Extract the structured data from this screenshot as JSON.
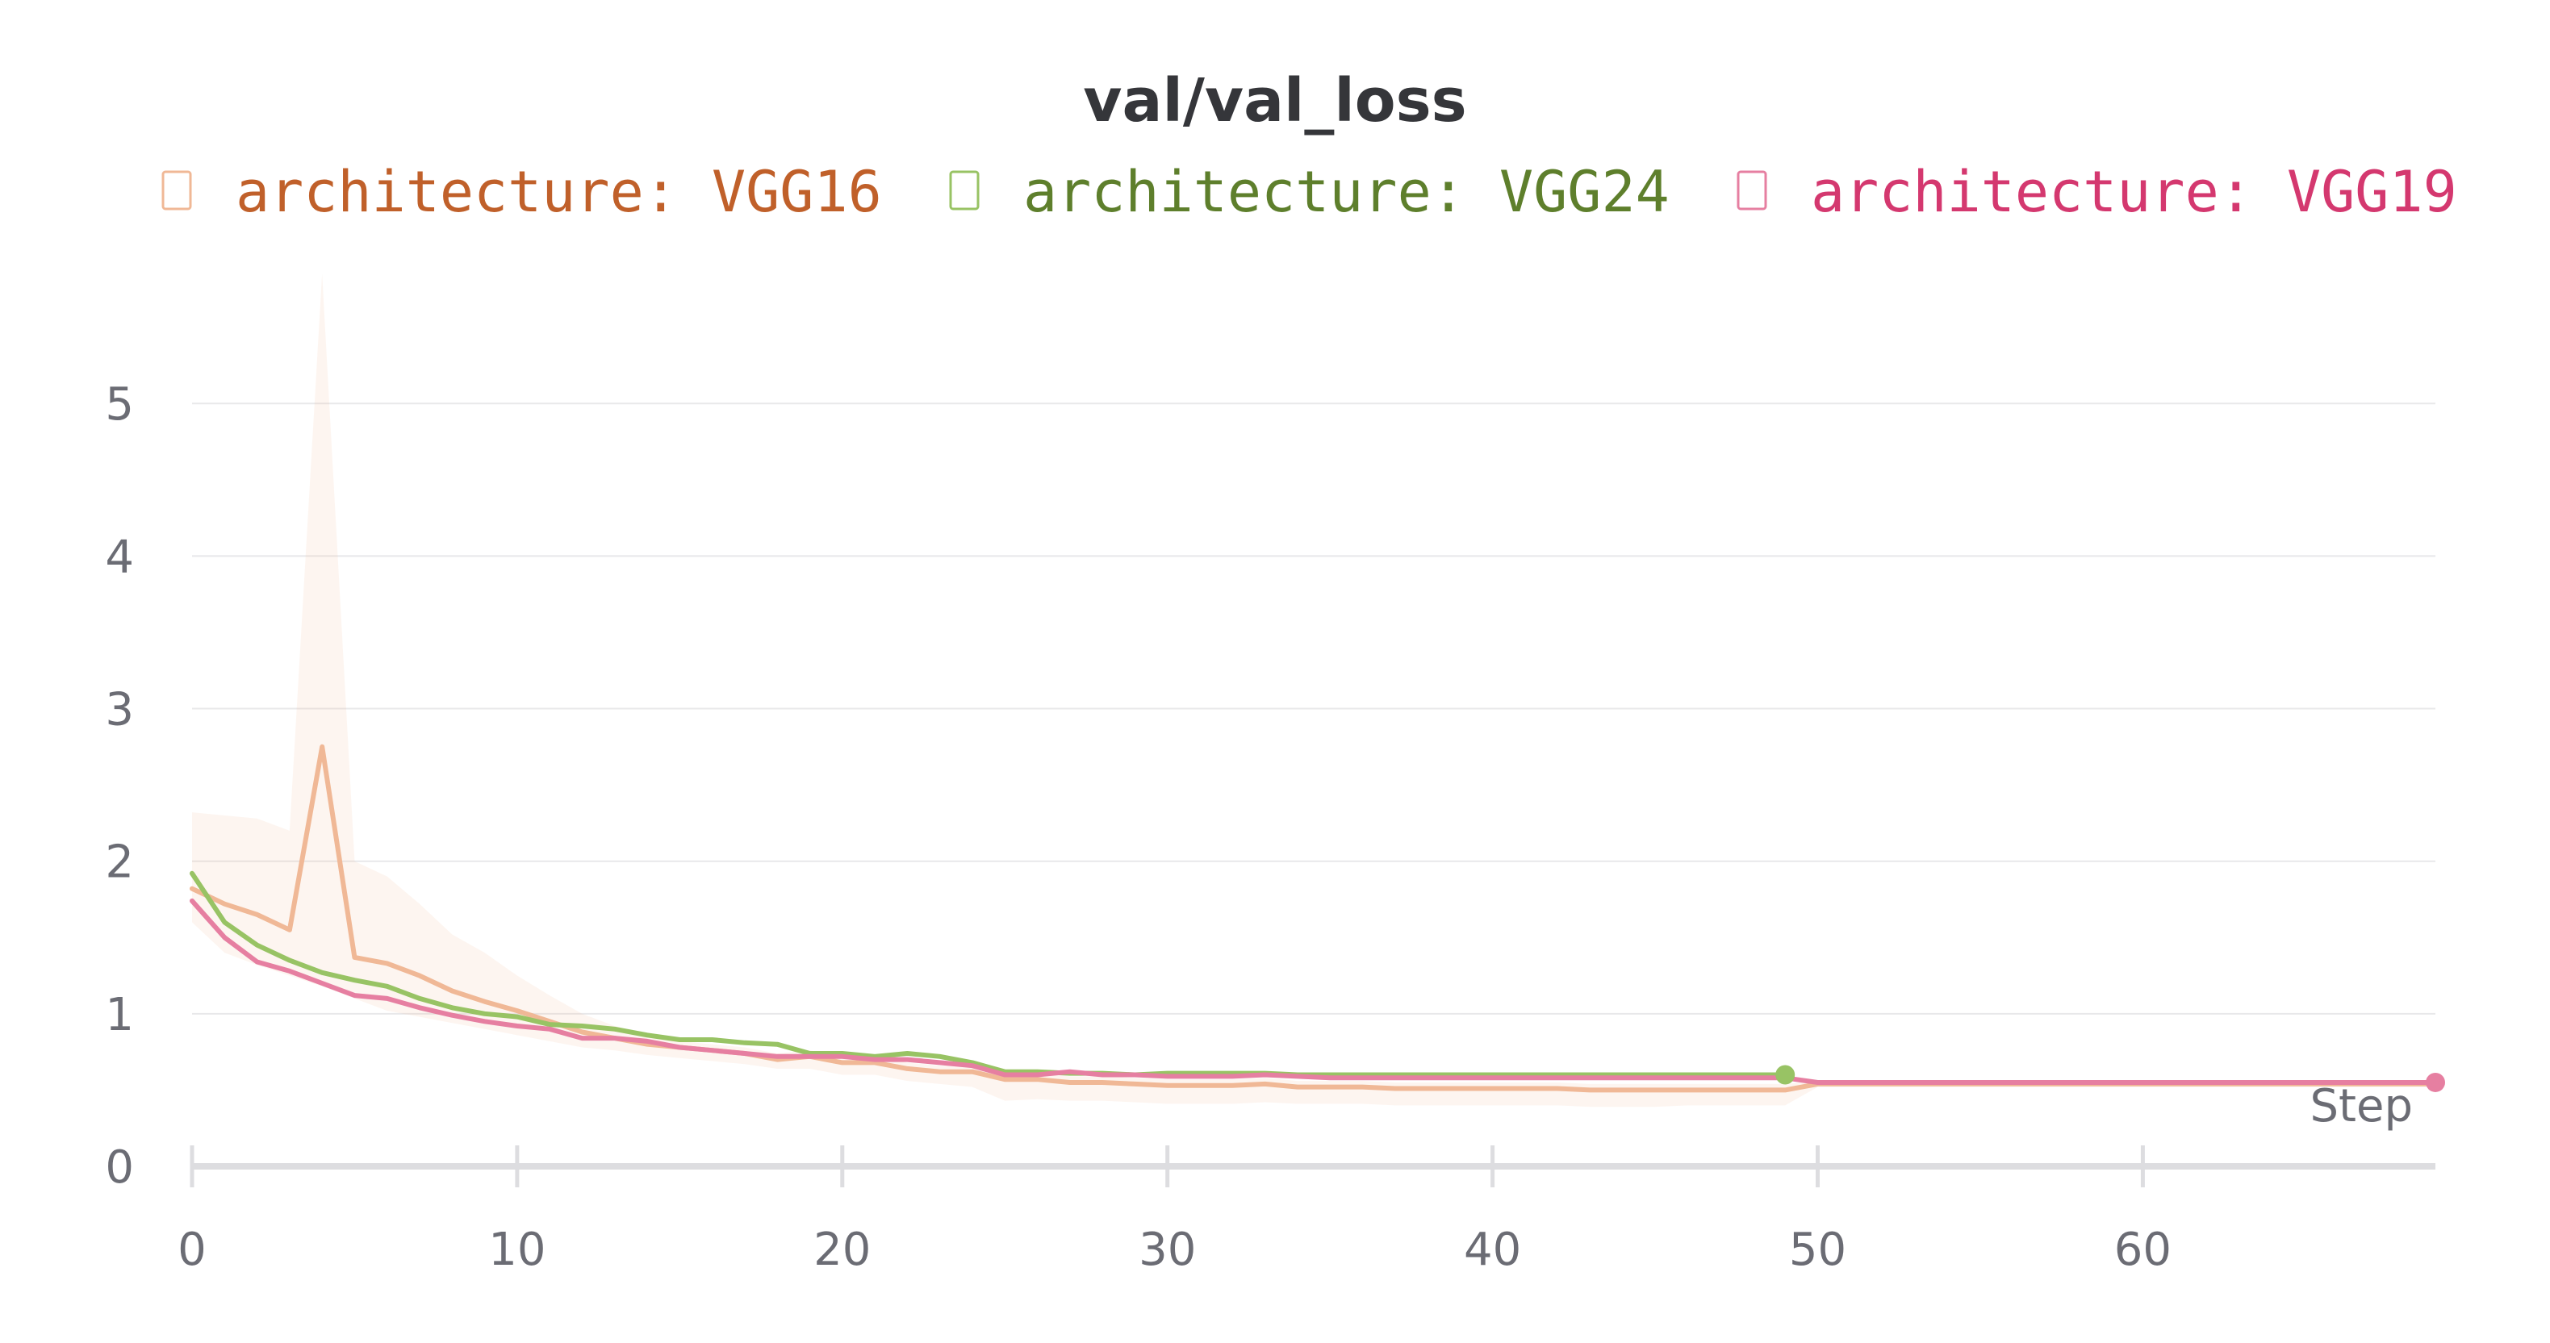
{
  "chart_data": {
    "type": "line",
    "title": "val/val_loss",
    "xlabel": "Step",
    "ylabel": "",
    "xlim": [
      0,
      69
    ],
    "ylim": [
      0,
      5.9
    ],
    "x_ticks": [
      0,
      10,
      20,
      30,
      40,
      50,
      60
    ],
    "y_ticks": [
      0,
      1,
      2,
      3,
      4,
      5
    ],
    "grid": "horizontal",
    "legend_placement": "top",
    "series": [
      {
        "name": "architecture: VGG16",
        "color": "#f0b896",
        "legend_color": "#c0602a",
        "x": [
          0,
          1,
          2,
          3,
          4,
          5,
          6,
          7,
          8,
          9,
          10,
          11,
          12,
          13,
          14,
          15,
          16,
          17,
          18,
          19,
          20,
          21,
          22,
          23,
          24,
          25,
          26,
          27,
          28,
          29,
          30,
          31,
          32,
          33,
          34,
          35,
          36,
          37,
          38,
          39,
          40,
          41,
          42,
          43,
          44,
          45,
          46,
          47,
          48,
          49,
          50,
          51,
          52,
          53,
          54,
          55,
          56,
          57,
          58,
          59,
          60,
          61,
          62,
          63,
          64,
          65,
          66,
          67,
          68,
          69
        ],
        "values": [
          1.82,
          1.72,
          1.65,
          1.55,
          2.75,
          1.37,
          1.33,
          1.25,
          1.15,
          1.08,
          1.02,
          0.95,
          0.88,
          0.84,
          0.8,
          0.78,
          0.76,
          0.74,
          0.7,
          0.72,
          0.68,
          0.68,
          0.64,
          0.62,
          0.62,
          0.57,
          0.57,
          0.55,
          0.55,
          0.54,
          0.53,
          0.53,
          0.53,
          0.54,
          0.52,
          0.52,
          0.52,
          0.51,
          0.51,
          0.51,
          0.51,
          0.51,
          0.51,
          0.5,
          0.5,
          0.5,
          0.5,
          0.5,
          0.5,
          0.5,
          0.54,
          0.54,
          0.54,
          0.54,
          0.54,
          0.54,
          0.54,
          0.54,
          0.54,
          0.54,
          0.54,
          0.54,
          0.54,
          0.54,
          0.54,
          0.54,
          0.54,
          0.54,
          0.54,
          0.54
        ],
        "band_upper": [
          2.32,
          2.3,
          2.28,
          2.2,
          5.85,
          2.0,
          1.9,
          1.72,
          1.52,
          1.4,
          1.25,
          1.12,
          1.0,
          0.92,
          0.86,
          0.82,
          0.8,
          0.78,
          0.74,
          0.76,
          0.72,
          0.72,
          0.68,
          0.66,
          0.66,
          0.61,
          0.61,
          0.59,
          0.59,
          0.58,
          0.57,
          0.57,
          0.57,
          0.58,
          0.56,
          0.56,
          0.56,
          0.55,
          0.55,
          0.55,
          0.55,
          0.55,
          0.55,
          0.54,
          0.54,
          0.54,
          0.54,
          0.54,
          0.54,
          0.54,
          0.56,
          0.56,
          0.56,
          0.56,
          0.56,
          0.56,
          0.56,
          0.56,
          0.56,
          0.56,
          0.56,
          0.56,
          0.56,
          0.56,
          0.56,
          0.56,
          0.56,
          0.56,
          0.56,
          0.56
        ],
        "band_lower": [
          1.6,
          1.4,
          1.32,
          1.25,
          1.18,
          1.1,
          1.02,
          0.98,
          0.94,
          0.9,
          0.86,
          0.82,
          0.78,
          0.76,
          0.73,
          0.71,
          0.69,
          0.67,
          0.64,
          0.64,
          0.6,
          0.6,
          0.56,
          0.54,
          0.52,
          0.43,
          0.44,
          0.43,
          0.43,
          0.42,
          0.41,
          0.41,
          0.41,
          0.42,
          0.41,
          0.41,
          0.41,
          0.4,
          0.4,
          0.4,
          0.4,
          0.4,
          0.4,
          0.39,
          0.39,
          0.39,
          0.4,
          0.4,
          0.4,
          0.4,
          0.52,
          0.52,
          0.52,
          0.52,
          0.52,
          0.52,
          0.52,
          0.52,
          0.52,
          0.52,
          0.52,
          0.52,
          0.52,
          0.52,
          0.52,
          0.52,
          0.52,
          0.52,
          0.52,
          0.52
        ]
      },
      {
        "name": "architecture: VGG24",
        "color": "#98c364",
        "legend_color": "#5e7f2c",
        "x": [
          0,
          1,
          2,
          3,
          4,
          5,
          6,
          7,
          8,
          9,
          10,
          11,
          12,
          13,
          14,
          15,
          16,
          17,
          18,
          19,
          20,
          21,
          22,
          23,
          24,
          25,
          26,
          27,
          28,
          29,
          30,
          31,
          32,
          33,
          34,
          35,
          36,
          37,
          38,
          39,
          40,
          41,
          42,
          43,
          44,
          45,
          46,
          47,
          48,
          49
        ],
        "values": [
          1.92,
          1.6,
          1.45,
          1.35,
          1.27,
          1.22,
          1.18,
          1.1,
          1.04,
          1.0,
          0.98,
          0.93,
          0.92,
          0.9,
          0.86,
          0.83,
          0.83,
          0.81,
          0.8,
          0.74,
          0.74,
          0.72,
          0.74,
          0.72,
          0.68,
          0.62,
          0.62,
          0.61,
          0.61,
          0.6,
          0.61,
          0.61,
          0.61,
          0.61,
          0.6,
          0.6,
          0.6,
          0.6,
          0.6,
          0.6,
          0.6,
          0.6,
          0.6,
          0.6,
          0.6,
          0.6,
          0.6,
          0.6,
          0.6,
          0.6
        ]
      },
      {
        "name": "architecture: VGG19",
        "color": "#e67fa1",
        "legend_color": "#d4386f",
        "x": [
          0,
          1,
          2,
          3,
          4,
          5,
          6,
          7,
          8,
          9,
          10,
          11,
          12,
          13,
          14,
          15,
          16,
          17,
          18,
          19,
          20,
          21,
          22,
          23,
          24,
          25,
          26,
          27,
          28,
          29,
          30,
          31,
          32,
          33,
          34,
          35,
          36,
          37,
          38,
          39,
          40,
          41,
          42,
          43,
          44,
          45,
          46,
          47,
          48,
          49,
          50,
          51,
          52,
          53,
          54,
          55,
          56,
          57,
          58,
          59,
          60,
          61,
          62,
          63,
          64,
          65,
          66,
          67,
          68,
          69
        ],
        "values": [
          1.74,
          1.5,
          1.34,
          1.28,
          1.2,
          1.12,
          1.1,
          1.04,
          0.99,
          0.95,
          0.92,
          0.9,
          0.84,
          0.84,
          0.82,
          0.78,
          0.76,
          0.74,
          0.72,
          0.72,
          0.72,
          0.7,
          0.7,
          0.68,
          0.66,
          0.6,
          0.6,
          0.62,
          0.6,
          0.6,
          0.59,
          0.59,
          0.59,
          0.6,
          0.59,
          0.58,
          0.58,
          0.58,
          0.58,
          0.58,
          0.58,
          0.58,
          0.58,
          0.58,
          0.58,
          0.58,
          0.58,
          0.58,
          0.58,
          0.58,
          0.55,
          0.55,
          0.55,
          0.55,
          0.55,
          0.55,
          0.55,
          0.55,
          0.55,
          0.55,
          0.55,
          0.55,
          0.55,
          0.55,
          0.55,
          0.55,
          0.55,
          0.55,
          0.55,
          0.55
        ]
      }
    ]
  }
}
